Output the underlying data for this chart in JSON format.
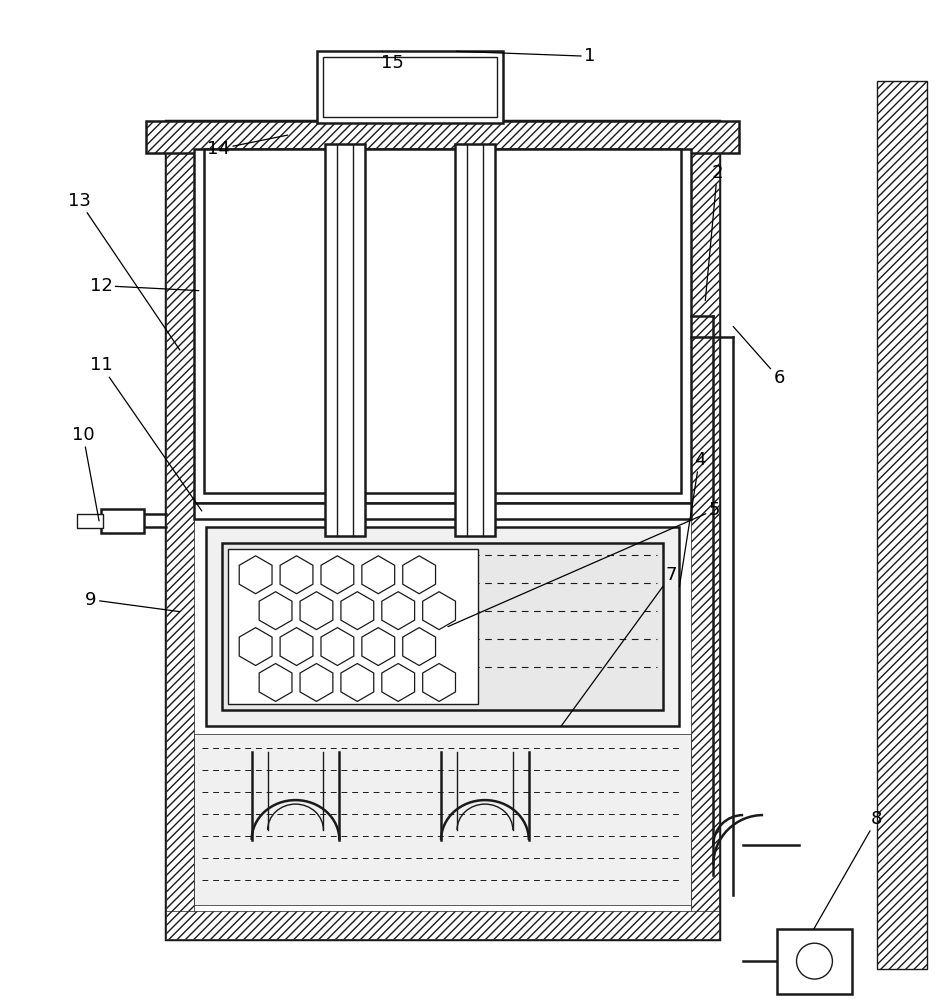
{
  "bg_color": "#ffffff",
  "lc": "#1a1a1a",
  "lw_main": 1.8,
  "lw_thick": 2.5,
  "lw_thin": 1.0,
  "gray_fill": "#e8e8e8",
  "light_fill": "#f0f0f0"
}
